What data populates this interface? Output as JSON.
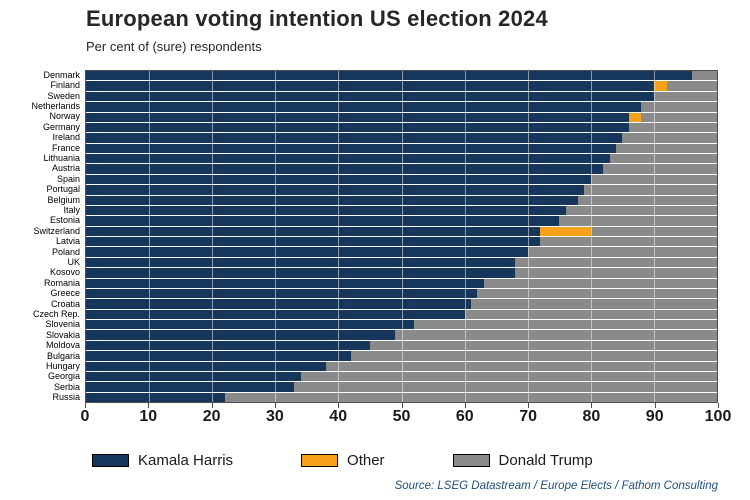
{
  "title": "European voting intention US election 2024",
  "subtitle": "Per cent of (sure) respondents",
  "source": "Source: LSEG Datastream / Europe Elects / Fathom Consulting",
  "colors": {
    "harris": "#16365c",
    "other": "#f7a11a",
    "trump": "#8a8a8a"
  },
  "legend": [
    {
      "label": "Kamala Harris",
      "color": "#16365c"
    },
    {
      "label": "Other",
      "color": "#f7a11a"
    },
    {
      "label": "Donald Trump",
      "color": "#8a8a8a"
    }
  ],
  "chart_data": {
    "type": "bar",
    "orientation": "horizontal",
    "stacked": true,
    "title": "European voting intention US election 2024",
    "subtitle": "Per cent of (sure) respondents",
    "xlabel": "",
    "ylabel": "",
    "xlim": [
      0,
      100
    ],
    "xticks": [
      0,
      10,
      20,
      30,
      40,
      50,
      60,
      70,
      80,
      90,
      100
    ],
    "gridlines": [
      10,
      20,
      30,
      40,
      50,
      60,
      70,
      80,
      90
    ],
    "legend_position": "bottom",
    "categories": [
      "Denmark",
      "Finland",
      "Sweden",
      "Netherlands",
      "Norway",
      "Germany",
      "Ireland",
      "France",
      "Lithuania",
      "Austria",
      "Spain",
      "Portugal",
      "Belgium",
      "Italy",
      "Estonia",
      "Switzerland",
      "Latvia",
      "Poland",
      "UK",
      "Kosovo",
      "Romania",
      "Greece",
      "Croatia",
      "Czech Rep.",
      "Slovenia",
      "Slovakia",
      "Moldova",
      "Bulgaria",
      "Hungary",
      "Georgia",
      "Serbia",
      "Russia"
    ],
    "series": [
      {
        "name": "Kamala Harris",
        "color": "#16365c",
        "values": [
          96,
          90,
          90,
          88,
          86,
          86,
          85,
          84,
          83,
          82,
          80,
          79,
          78,
          76,
          75,
          72,
          72,
          70,
          68,
          68,
          63,
          62,
          61,
          60,
          52,
          49,
          45,
          42,
          38,
          34,
          33,
          22
        ]
      },
      {
        "name": "Other",
        "color": "#f7a11a",
        "values": [
          0,
          2,
          0,
          0,
          2,
          0,
          0,
          0,
          0,
          0,
          0,
          0,
          0,
          0,
          0,
          8,
          0,
          0,
          0,
          0,
          0,
          0,
          0,
          0,
          0,
          0,
          0,
          0,
          0,
          0,
          0,
          0
        ]
      },
      {
        "name": "Donald Trump",
        "color": "#8a8a8a",
        "values": [
          4,
          8,
          10,
          12,
          12,
          14,
          15,
          16,
          17,
          18,
          20,
          21,
          22,
          24,
          25,
          20,
          28,
          30,
          32,
          32,
          37,
          38,
          39,
          40,
          48,
          51,
          55,
          58,
          62,
          66,
          67,
          78
        ]
      }
    ]
  }
}
